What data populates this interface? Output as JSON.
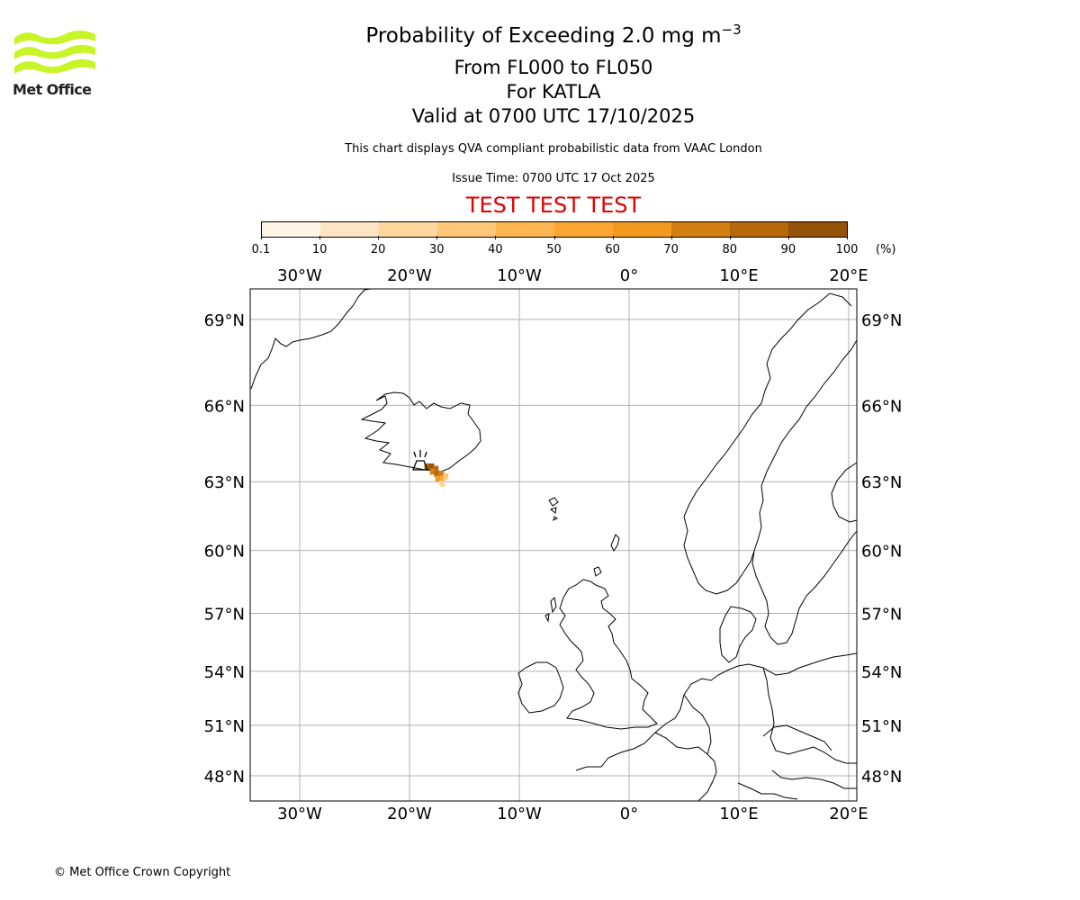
{
  "logo": {
    "text": "Met Office",
    "color": "#c8f527"
  },
  "header": {
    "title_main": "Probability of Exceeding 2.0 mg m",
    "title_exponent": "−3",
    "level_range": "From FL000 to FL050",
    "volcano": "For KATLA",
    "valid_time": "Valid at 0700 UTC 17/10/2025",
    "description": "This chart displays QVA compliant probabilistic data from VAAC London",
    "issue_time": "Issue Time: 0700 UTC 17 Oct 2025",
    "test_banner": "TEST TEST TEST"
  },
  "colorbar": {
    "ticks": [
      "0.1",
      "10",
      "20",
      "30",
      "40",
      "50",
      "60",
      "70",
      "80",
      "90",
      "100"
    ],
    "unit": "(%)",
    "colors": [
      "#fff5e6",
      "#fee6c5",
      "#fed79f",
      "#fec878",
      "#fdb652",
      "#fba632",
      "#f29a1e",
      "#d47f12",
      "#b5680c",
      "#955309",
      "#6b3b06"
    ]
  },
  "map": {
    "lon_labels": [
      "30°W",
      "20°W",
      "10°W",
      "0°",
      "10°E",
      "20°E"
    ],
    "lat_labels": [
      "69°N",
      "66°N",
      "63°N",
      "60°N",
      "57°N",
      "54°N",
      "51°N",
      "48°N"
    ],
    "lon_values": [
      -30,
      -20,
      -10,
      0,
      10,
      20
    ],
    "lat_values": [
      69,
      66,
      63,
      60,
      57,
      54,
      51,
      48
    ],
    "volcano_marker": "volcano-icon",
    "ash_cells": [
      {
        "lon": -18.4,
        "lat": 63.6,
        "prob": 85
      },
      {
        "lon": -18.0,
        "lat": 63.6,
        "prob": 90
      },
      {
        "lon": -17.6,
        "lat": 63.5,
        "prob": 80
      },
      {
        "lon": -17.9,
        "lat": 63.4,
        "prob": 75
      },
      {
        "lon": -17.5,
        "lat": 63.3,
        "prob": 85
      },
      {
        "lon": -17.1,
        "lat": 63.3,
        "prob": 70
      },
      {
        "lon": -17.4,
        "lat": 63.1,
        "prob": 65
      },
      {
        "lon": -17.0,
        "lat": 63.1,
        "prob": 55
      },
      {
        "lon": -17.0,
        "lat": 62.9,
        "prob": 25
      },
      {
        "lon": -16.7,
        "lat": 63.2,
        "prob": 30
      }
    ]
  },
  "footer": {
    "copyright": "© Met Office Crown Copyright"
  }
}
